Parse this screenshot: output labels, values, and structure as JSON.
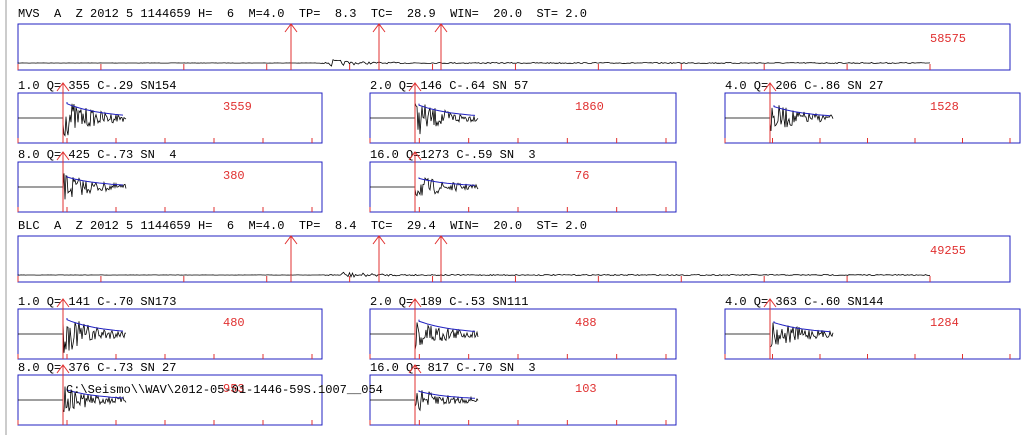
{
  "stations": [
    {
      "header": "MVS  A  Z 2012 5 1144659 H=  6  M=4.0  TP=  8.3  TC=  28.9  WIN=  20.0  ST= 2.0",
      "amplitude": "58575",
      "panels": [
        {
          "label": "1.0 Q= 355 C-.29 SN154",
          "amplitude": "3559"
        },
        {
          "label": "2.0 Q= 146 C-.64 SN 57",
          "amplitude": "1860"
        },
        {
          "label": "4.0 Q= 206 C-.86 SN 27",
          "amplitude": "1528"
        },
        {
          "label": "8.0 Q= 425 C-.73 SN  4",
          "amplitude": "380"
        },
        {
          "label": "16.0 Q=1273 C-.59 SN  3",
          "amplitude": "76"
        }
      ]
    },
    {
      "header": "BLC  A  Z 2012 5 1144659 H=  6  M=4.0  TP=  8.4  TC=  29.4  WIN=  20.0  ST= 2.0",
      "amplitude": "49255",
      "panels": [
        {
          "label": "1.0 Q= 141 C-.70 SN173",
          "amplitude": "480"
        },
        {
          "label": "2.0 Q= 189 C-.53 SN111",
          "amplitude": "488"
        },
        {
          "label": "4.0 Q= 363 C-.60 SN144",
          "amplitude": "1284"
        },
        {
          "label": "8.0 Q= 376 C-.73 SN 27",
          "amplitude": "953"
        },
        {
          "label": "16.0 Q= 817 C-.70 SN  3",
          "amplitude": "103"
        }
      ]
    }
  ],
  "path_text": "C:\\Seismo\\\\WAV\\2012-05-01-1446-59S.1007__054"
}
